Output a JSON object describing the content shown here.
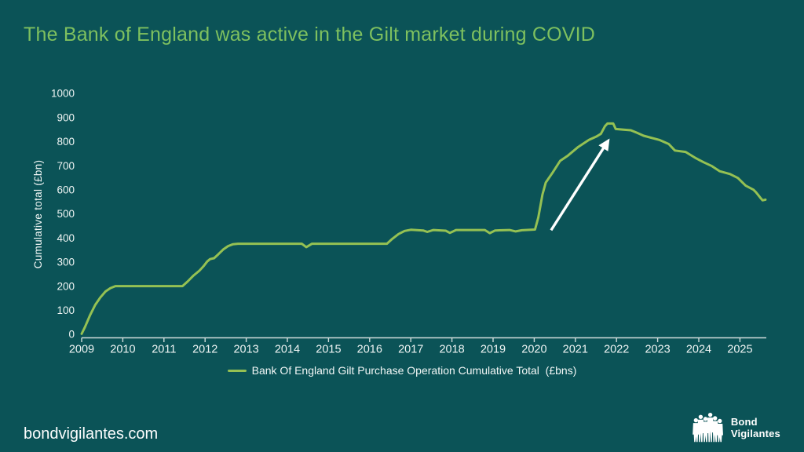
{
  "slide": {
    "title": "The Bank of England was active in the Gilt market during COVID",
    "footer_site": "bondvigilantes.com",
    "logo": {
      "line1": "Bond",
      "line2": "Vigilantes"
    }
  },
  "colors": {
    "background": "#0b5357",
    "title": "#7ec05f",
    "line": "#95c153",
    "axis": "#cfdbda",
    "text": "#f2f7f6",
    "arrow": "#ffffff"
  },
  "chart_data": {
    "type": "line",
    "title": "The Bank of England was active in the Gilt market during COVID",
    "xlabel": "",
    "ylabel": "Cumulative total (£bn)",
    "ylim": [
      0,
      1000
    ],
    "ytick_step": 100,
    "x_range": [
      2009,
      2025.75
    ],
    "xticks": [
      2009,
      2010,
      2011,
      2012,
      2013,
      2014,
      2015,
      2016,
      2017,
      2018,
      2019,
      2020,
      2021,
      2022,
      2023,
      2024,
      2025
    ],
    "grid": false,
    "legend_position": "bottom",
    "series": [
      {
        "name": "Bank Of England Gilt Purchase Operation Cumulative Total  (£bns)",
        "color": "#95c153",
        "points": [
          [
            2009.0,
            2
          ],
          [
            2009.08,
            30
          ],
          [
            2009.2,
            78
          ],
          [
            2009.33,
            122
          ],
          [
            2009.45,
            152
          ],
          [
            2009.58,
            178
          ],
          [
            2009.7,
            192
          ],
          [
            2009.82,
            200
          ],
          [
            2011.45,
            200
          ],
          [
            2011.58,
            220
          ],
          [
            2011.72,
            244
          ],
          [
            2011.86,
            264
          ],
          [
            2011.96,
            282
          ],
          [
            2012.05,
            302
          ],
          [
            2012.12,
            312
          ],
          [
            2012.22,
            316
          ],
          [
            2012.32,
            332
          ],
          [
            2012.44,
            352
          ],
          [
            2012.56,
            366
          ],
          [
            2012.68,
            374
          ],
          [
            2012.8,
            376
          ],
          [
            2014.35,
            376
          ],
          [
            2014.46,
            362
          ],
          [
            2014.6,
            376
          ],
          [
            2016.42,
            376
          ],
          [
            2016.55,
            396
          ],
          [
            2016.7,
            416
          ],
          [
            2016.85,
            429
          ],
          [
            2017.0,
            434
          ],
          [
            2017.3,
            431
          ],
          [
            2017.4,
            425
          ],
          [
            2017.55,
            433
          ],
          [
            2017.85,
            430
          ],
          [
            2017.95,
            421
          ],
          [
            2018.1,
            433
          ],
          [
            2018.8,
            433
          ],
          [
            2018.92,
            420
          ],
          [
            2019.05,
            431
          ],
          [
            2019.4,
            433
          ],
          [
            2019.55,
            427
          ],
          [
            2019.7,
            432
          ],
          [
            2020.02,
            435
          ],
          [
            2020.1,
            485
          ],
          [
            2020.2,
            580
          ],
          [
            2020.28,
            630
          ],
          [
            2020.45,
            672
          ],
          [
            2020.63,
            720
          ],
          [
            2020.82,
            742
          ],
          [
            2021.07,
            778
          ],
          [
            2021.33,
            807
          ],
          [
            2021.5,
            820
          ],
          [
            2021.62,
            832
          ],
          [
            2021.72,
            864
          ],
          [
            2021.78,
            875
          ],
          [
            2021.92,
            875
          ],
          [
            2021.98,
            852
          ],
          [
            2022.2,
            849
          ],
          [
            2022.35,
            847
          ],
          [
            2022.5,
            836
          ],
          [
            2022.66,
            824
          ],
          [
            2023.04,
            807
          ],
          [
            2023.27,
            790
          ],
          [
            2023.42,
            763
          ],
          [
            2023.68,
            757
          ],
          [
            2023.93,
            731
          ],
          [
            2024.12,
            714
          ],
          [
            2024.32,
            698
          ],
          [
            2024.51,
            677
          ],
          [
            2024.76,
            665
          ],
          [
            2024.95,
            649
          ],
          [
            2025.14,
            617
          ],
          [
            2025.33,
            600
          ],
          [
            2025.39,
            590
          ],
          [
            2025.49,
            568
          ],
          [
            2025.55,
            556
          ],
          [
            2025.62,
            559
          ]
        ]
      }
    ],
    "annotations": [
      {
        "type": "arrow",
        "from": [
          2020.41,
          432
        ],
        "to": [
          2021.77,
          796
        ],
        "color": "#ffffff"
      }
    ]
  }
}
